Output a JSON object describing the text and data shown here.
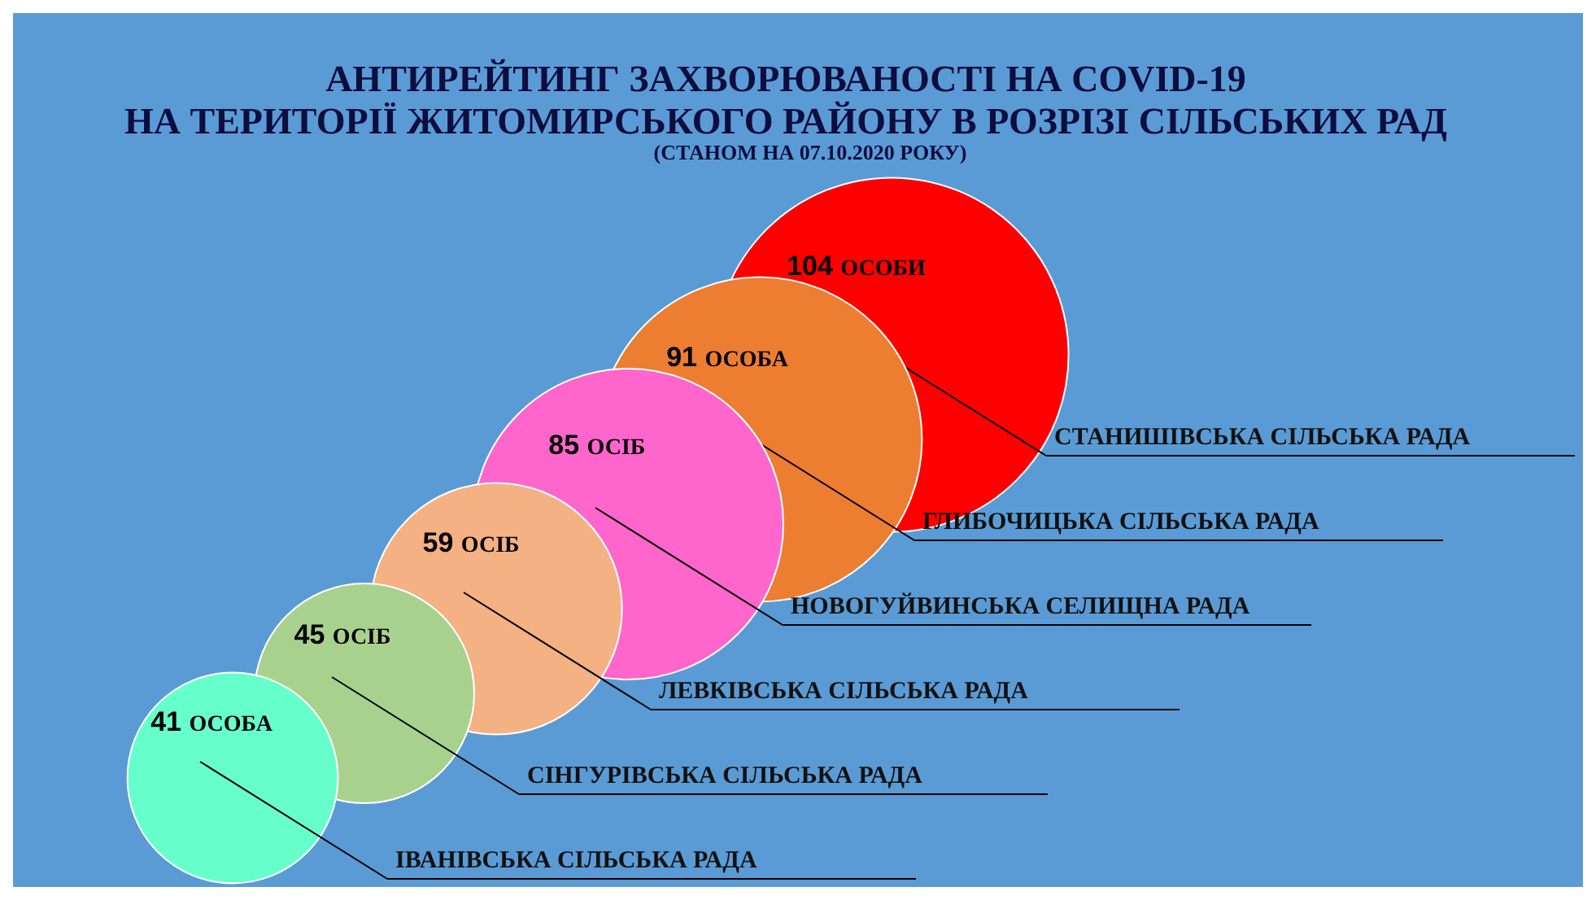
{
  "chart_data": {
    "type": "other",
    "title": "АНТИРЕЙТИНГ ЗАХВОРЮВАНОСТІ НА COVID-19\nНА ТЕРИТОРІЇ ЖИТОМИРСЬКОГО РАЙОНУ В РОЗРІЗІ СІЛЬСЬКИХ РАД",
    "subtitle": "(СТАНОМ НА 07.10.2020 РОКУ)",
    "categories": [
      "СТАНИШІВСЬКА СІЛЬСЬКА РАДА",
      "ГЛИБОЧИЦЬКА СІЛЬСЬКА РАДА",
      "НОВОГУЙВИНСЬКА СЕЛИЩНА РАДА",
      "ЛЕВКІВСЬКА СІЛЬСЬКА РАДА",
      "СІНГУРІВСЬКА СІЛЬСЬКА РАДА",
      "ІВАНІВСЬКА СІЛЬСЬКА РАДА"
    ],
    "values": [
      104,
      91,
      85,
      59,
      45,
      41
    ],
    "value_labels": [
      "104 ОСОБИ",
      "91 ОСОБА",
      "85 ОСІБ",
      "59 ОСІБ",
      "45 ОСІБ",
      "41 ОСОБА"
    ],
    "colors": [
      "#ff0000",
      "#ed7d31",
      "#ff66cc",
      "#f4b183",
      "#a9d18e",
      "#66ffcc"
    ]
  }
}
